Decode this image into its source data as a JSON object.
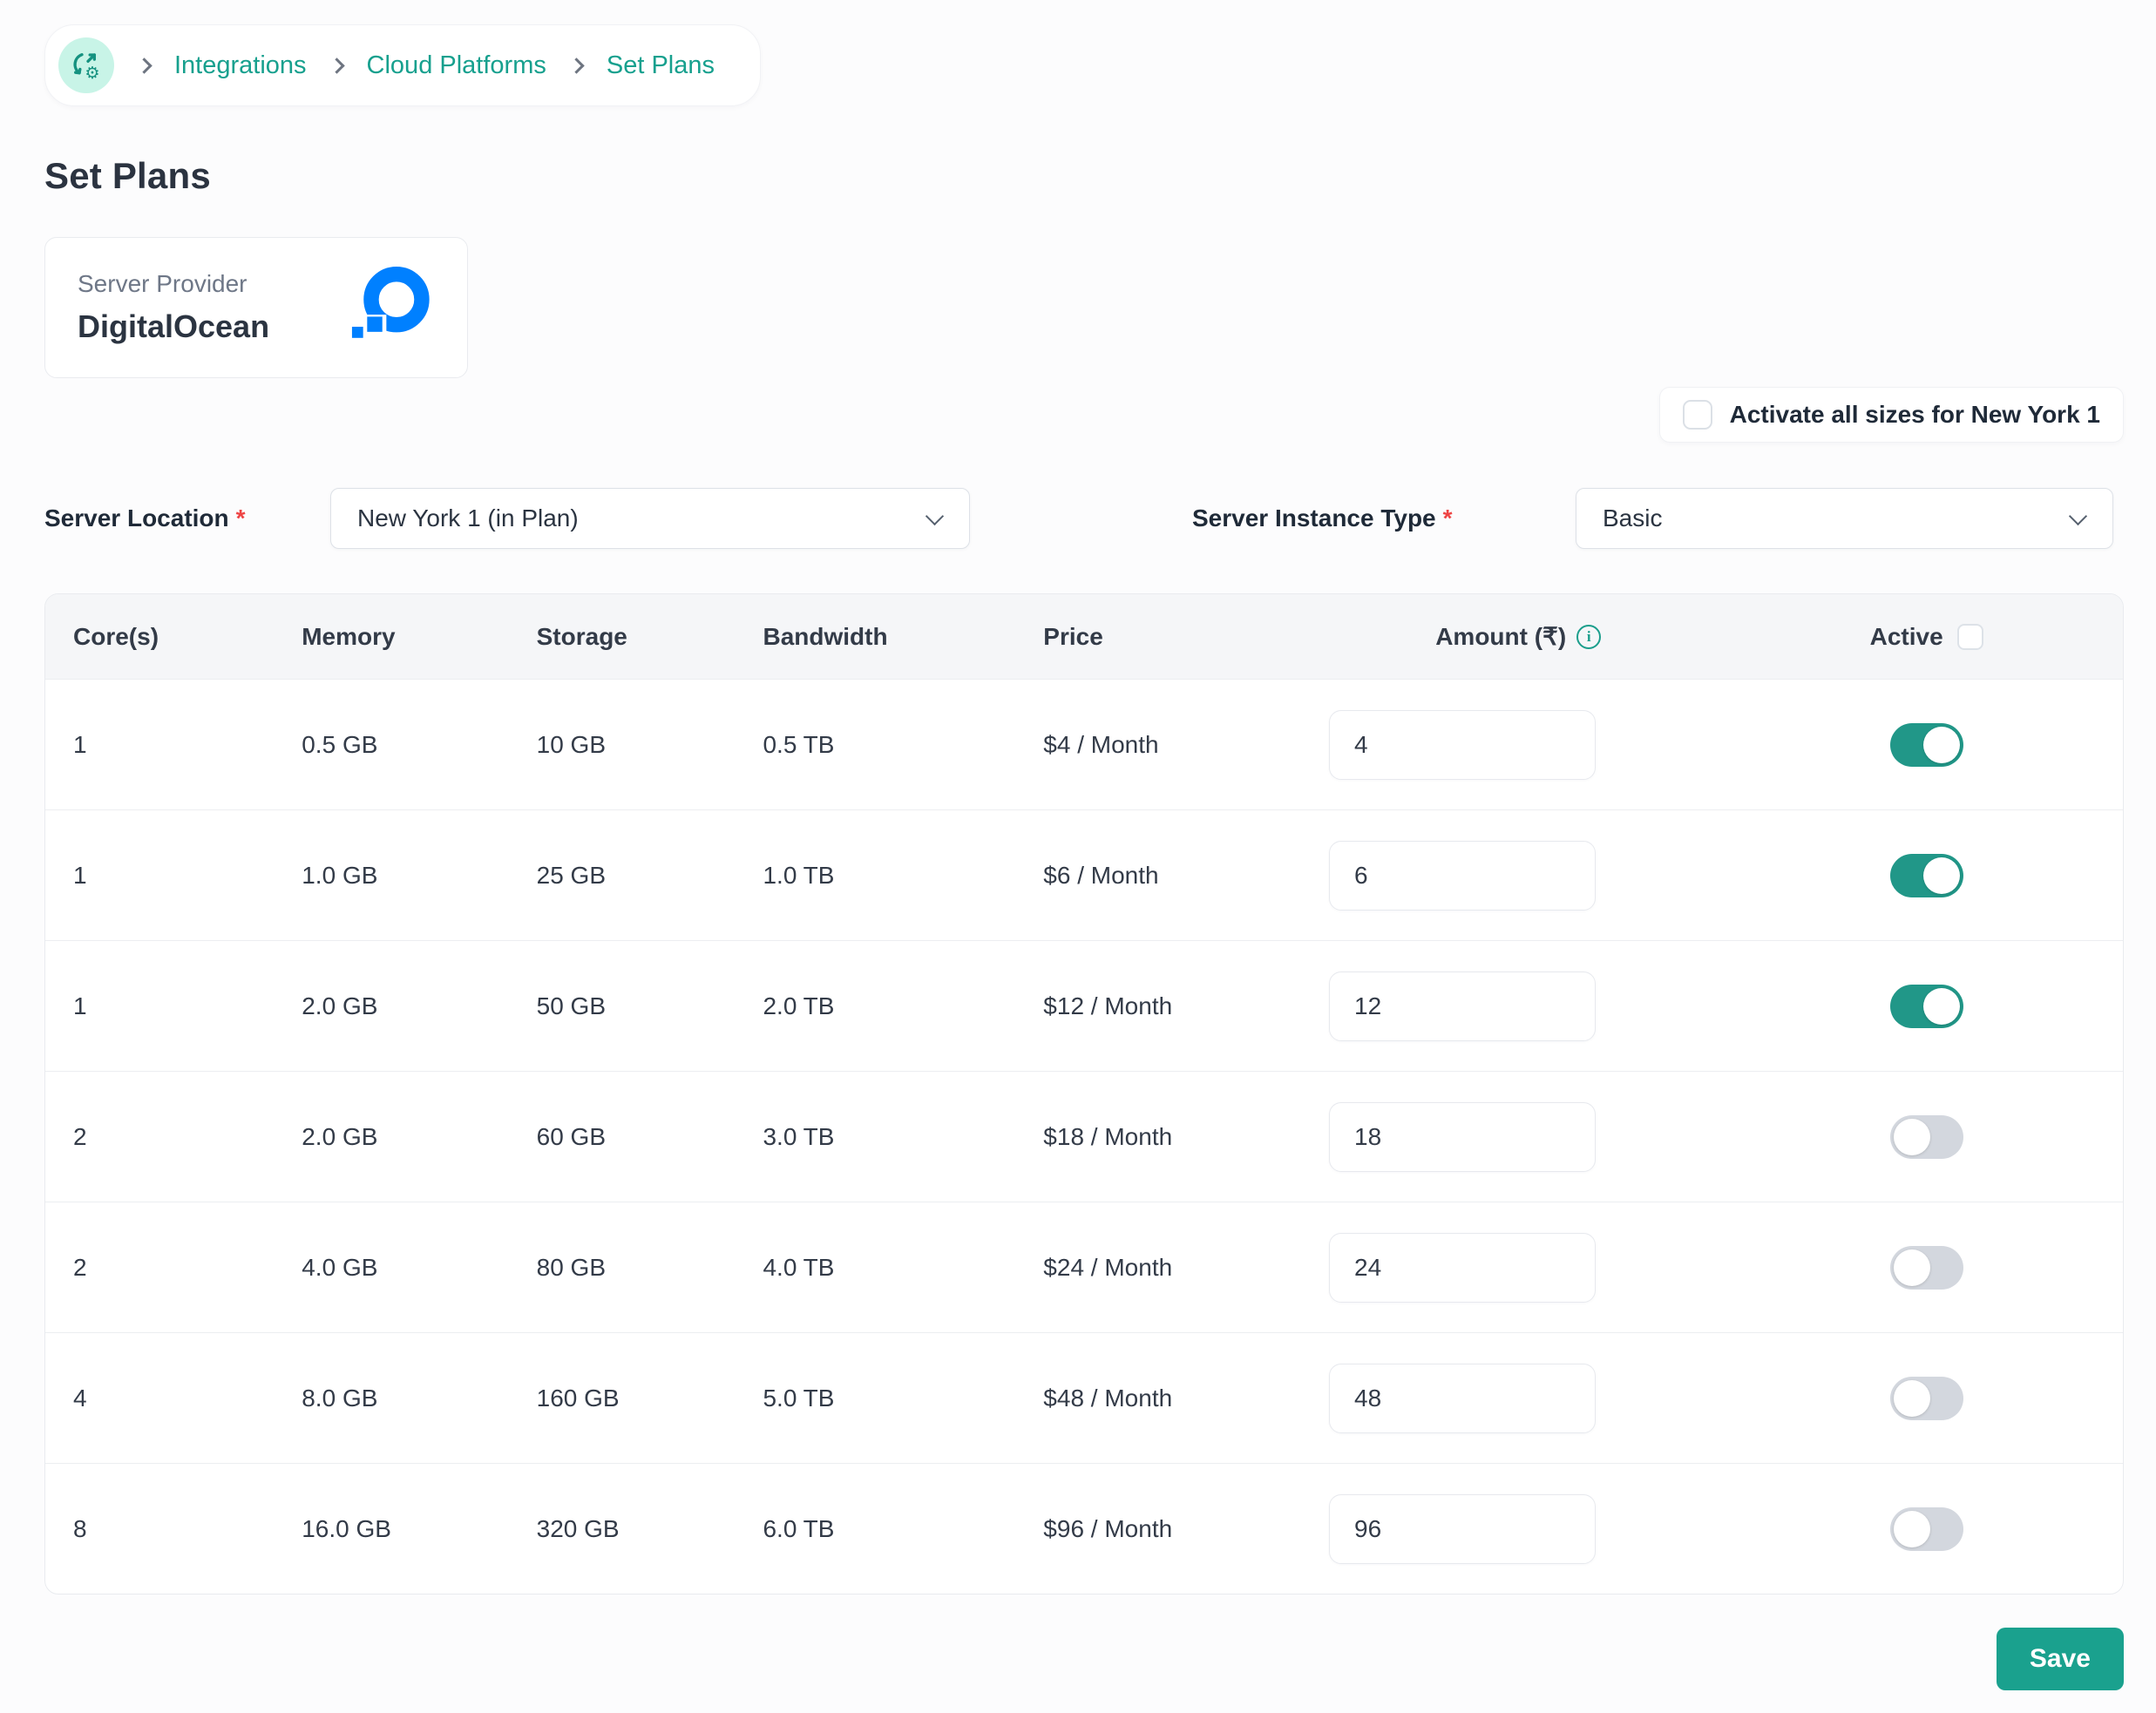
{
  "colors": {
    "accent_teal": "#1aa18e",
    "toggle_on": "#219788",
    "toggle_off": "#d3d7de",
    "digitalocean_blue": "#0080ff",
    "required_red": "#ee4444",
    "badge_mint": "#c8f4e7",
    "header_bg": "#f5f6f8",
    "text_dark": "#2b3441"
  },
  "breadcrumb": {
    "icon": "sync-gear-icon",
    "items": [
      "Integrations",
      "Cloud Platforms",
      "Set Plans"
    ]
  },
  "page": {
    "title": "Set Plans"
  },
  "provider": {
    "label": "Server Provider",
    "name": "DigitalOcean",
    "logo": "digitalocean-logo"
  },
  "activate_all": {
    "label": "Activate all sizes for New York 1",
    "checked": false
  },
  "filters": {
    "location": {
      "label": "Server Location",
      "required": "*",
      "value": "New York 1 (in Plan)"
    },
    "instance_type": {
      "label": "Server Instance Type",
      "required": "*",
      "value": "Basic"
    }
  },
  "table": {
    "headers": {
      "cores": "Core(s)",
      "memory": "Memory",
      "storage": "Storage",
      "bandwidth": "Bandwidth",
      "price": "Price",
      "amount": "Amount (₹)",
      "active": "Active"
    },
    "header_active_checkbox_checked": false,
    "rows": [
      {
        "cores": "1",
        "memory": "0.5 GB",
        "storage": "10 GB",
        "bandwidth": "0.5 TB",
        "price": "$4 / Month",
        "amount": "4",
        "active": true
      },
      {
        "cores": "1",
        "memory": "1.0 GB",
        "storage": "25 GB",
        "bandwidth": "1.0 TB",
        "price": "$6 / Month",
        "amount": "6",
        "active": true
      },
      {
        "cores": "1",
        "memory": "2.0 GB",
        "storage": "50 GB",
        "bandwidth": "2.0 TB",
        "price": "$12 / Month",
        "amount": "12",
        "active": true
      },
      {
        "cores": "2",
        "memory": "2.0 GB",
        "storage": "60 GB",
        "bandwidth": "3.0 TB",
        "price": "$18 / Month",
        "amount": "18",
        "active": false
      },
      {
        "cores": "2",
        "memory": "4.0 GB",
        "storage": "80 GB",
        "bandwidth": "4.0 TB",
        "price": "$24 / Month",
        "amount": "24",
        "active": false
      },
      {
        "cores": "4",
        "memory": "8.0 GB",
        "storage": "160 GB",
        "bandwidth": "5.0 TB",
        "price": "$48 / Month",
        "amount": "48",
        "active": false
      },
      {
        "cores": "8",
        "memory": "16.0 GB",
        "storage": "320 GB",
        "bandwidth": "6.0 TB",
        "price": "$96 / Month",
        "amount": "96",
        "active": false
      }
    ]
  },
  "save_label": "Save"
}
